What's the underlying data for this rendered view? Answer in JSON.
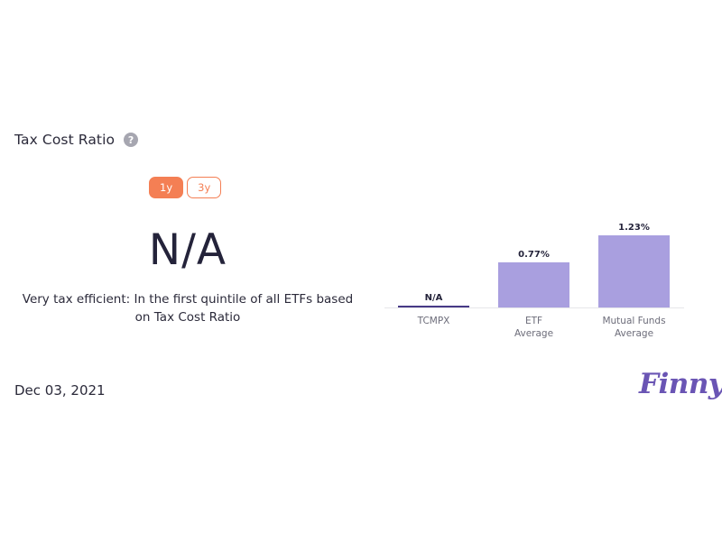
{
  "title": "Tax Cost Ratio",
  "help_icon": "question-circle-icon",
  "tabs": [
    {
      "label": "1y",
      "active": true
    },
    {
      "label": "3y",
      "active": false
    }
  ],
  "big_value": "N/A",
  "description": "Very tax efficient: In the first quintile of all ETFs based on Tax Cost Ratio",
  "date": "Dec 03, 2021",
  "logo_text": "Finny",
  "colors": {
    "accent": "#f47f54",
    "bar": "#a99fdf",
    "highlight_bar": "#473a86",
    "logo": "#6a55b4"
  },
  "chart_data": {
    "type": "bar",
    "categories": [
      "TCMPX",
      "ETF\nAverage",
      "Mutual Funds\nAverage"
    ],
    "values": [
      null,
      0.77,
      1.23
    ],
    "value_labels": [
      "N/A",
      "0.77%",
      "1.23%"
    ],
    "unit": "%",
    "ylim": [
      0,
      1.23
    ],
    "grid": false,
    "legend": "none"
  }
}
